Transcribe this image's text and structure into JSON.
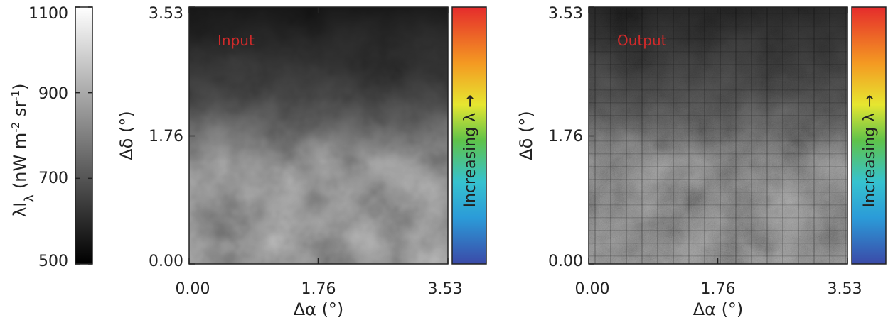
{
  "chart_data": [
    {
      "type": "heatmap",
      "role": "intensity-colorbar",
      "colormap": "grayscale",
      "ylabel": "λI",
      "ylabel_sub": "λ",
      "ylabel_units": "(nW m",
      "ylabel_exp1": "-2",
      "ylabel_mid": " sr",
      "ylabel_exp2": "-1",
      "ylabel_close": ")",
      "ylim": [
        500,
        1100
      ],
      "ticks": [
        500,
        700,
        900,
        1100
      ],
      "tick_labels": [
        "500",
        "700",
        "900",
        "1100"
      ]
    },
    {
      "type": "heatmap",
      "title": "Input",
      "xlabel": "Δα (°)",
      "ylabel": "Δδ (°)",
      "xlim": [
        0.0,
        3.53
      ],
      "ylim": [
        0.0,
        3.53
      ],
      "x_tick_labels": [
        "0.00",
        "1.76",
        "3.53"
      ],
      "y_tick_labels": [
        "0.00",
        "1.76",
        "3.53"
      ],
      "wavelength_bar": {
        "label": "Increasing λ →",
        "colormap": "rainbow"
      }
    },
    {
      "type": "heatmap",
      "title": "Output",
      "xlabel": "Δα (°)",
      "ylabel": "Δδ (°)",
      "xlim": [
        0.0,
        3.53
      ],
      "ylim": [
        0.0,
        3.53
      ],
      "x_tick_labels": [
        "0.00",
        "1.76",
        "3.53"
      ],
      "y_tick_labels": [
        "0.00",
        "1.76",
        "3.53"
      ],
      "wavelength_bar": {
        "label": "Increasing λ →",
        "colormap": "rainbow"
      }
    }
  ],
  "colors": {
    "annotation": "#d02a2a",
    "axis": "#222222"
  }
}
